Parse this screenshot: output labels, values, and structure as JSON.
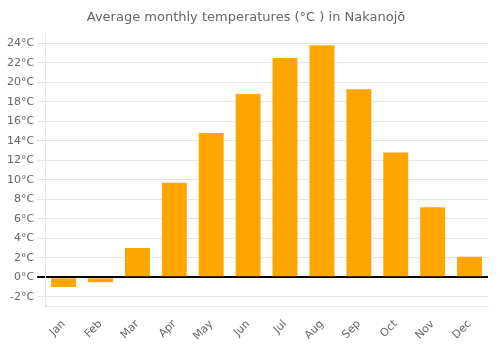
{
  "chart_data": {
    "type": "bar",
    "title": "Average monthly temperatures (°C ) in Nakanojō",
    "categories": [
      "Jan",
      "Feb",
      "Mar",
      "Apr",
      "May",
      "Jun",
      "Jul",
      "Aug",
      "Sep",
      "Oct",
      "Nov",
      "Dec"
    ],
    "values": [
      -1.0,
      -0.5,
      3.0,
      9.7,
      14.8,
      18.8,
      22.5,
      23.8,
      19.3,
      12.8,
      7.2,
      2.1
    ],
    "color": "#FFA500",
    "ylim": [
      -3,
      25
    ],
    "yticks": [
      {
        "value": -2,
        "label": "-2°C"
      },
      {
        "value": 0,
        "label": "0°C"
      },
      {
        "value": 2,
        "label": "2°C"
      },
      {
        "value": 4,
        "label": "4°C"
      },
      {
        "value": 6,
        "label": "6°C"
      },
      {
        "value": 8,
        "label": "8°C"
      },
      {
        "value": 10,
        "label": "10°C"
      },
      {
        "value": 12,
        "label": "12°C"
      },
      {
        "value": 14,
        "label": "14°C"
      },
      {
        "value": 16,
        "label": "16°C"
      },
      {
        "value": 18,
        "label": "18°C"
      },
      {
        "value": 20,
        "label": "20°C"
      },
      {
        "value": 22,
        "label": "22°C"
      },
      {
        "value": 24,
        "label": "24°C"
      }
    ],
    "grid": true
  }
}
